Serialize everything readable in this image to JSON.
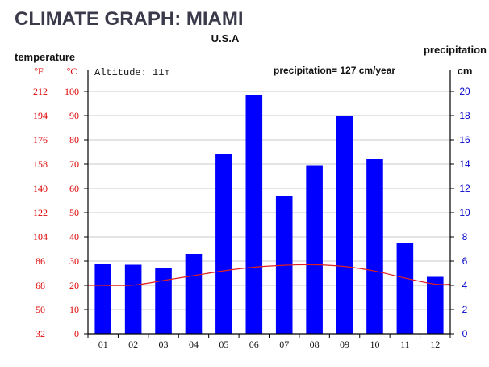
{
  "chart_data": {
    "type": "bar",
    "title": "CLIMATE GRAPH: MIAMI",
    "subtitle": "U.S.A",
    "left_axis_title": "temperature",
    "right_axis_title": "precipitation",
    "fahrenheit_unit": "°F",
    "celsius_unit": "°C",
    "precip_unit": "cm",
    "altitude_label": "Altitude: 11m",
    "annual_precip_label": "precipitation= 127 cm/year",
    "categories": [
      "01",
      "02",
      "03",
      "04",
      "05",
      "06",
      "07",
      "08",
      "09",
      "10",
      "11",
      "12"
    ],
    "precipitation_cm": [
      5.8,
      5.7,
      5.4,
      6.6,
      14.8,
      19.7,
      11.4,
      13.9,
      18.0,
      14.4,
      7.5,
      4.7
    ],
    "temperature_c": [
      20.0,
      20.1,
      22.0,
      24.0,
      26.0,
      27.5,
      28.3,
      28.5,
      27.8,
      25.9,
      23.0,
      20.5
    ],
    "celsius_ticks": [
      "0",
      "10",
      "20",
      "30",
      "40",
      "50",
      "60",
      "70",
      "80",
      "90",
      "100"
    ],
    "fahrenheit_ticks": [
      "32",
      "50",
      "68",
      "86",
      "104",
      "122",
      "140",
      "158",
      "176",
      "194",
      "212"
    ],
    "precip_ticks": [
      "0",
      "2",
      "4",
      "6",
      "8",
      "10",
      "12",
      "14",
      "16",
      "18",
      "20"
    ],
    "celsius_range": [
      0,
      100
    ],
    "precip_range": [
      0,
      20
    ],
    "colors": {
      "bars": "#0000ff",
      "temp_line": "#e02020",
      "temp_axis": "#dd0000",
      "precip_axis": "#0000cc",
      "grid": "#c8c8c8",
      "title": "#3a3a4a"
    }
  }
}
